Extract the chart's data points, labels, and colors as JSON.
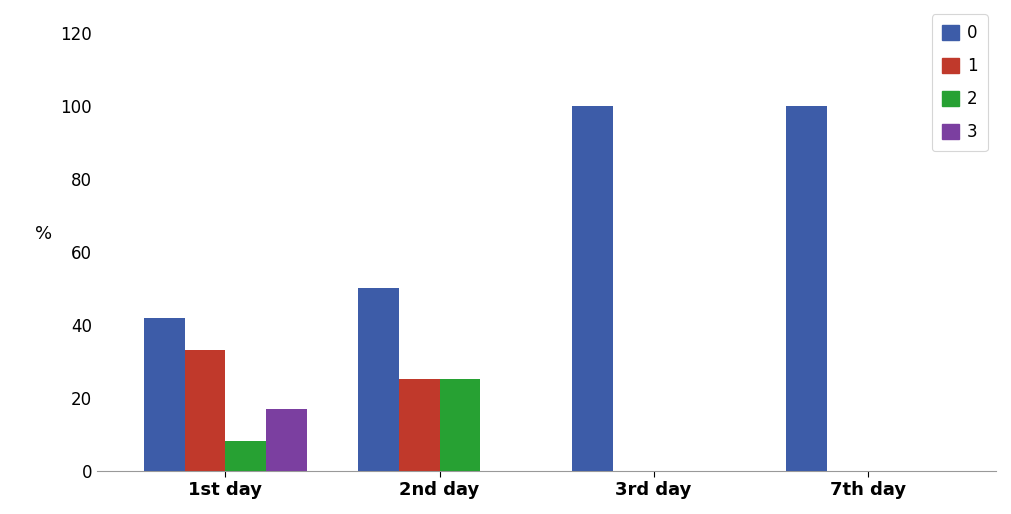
{
  "categories": [
    "1st day",
    "2nd day",
    "3rd day",
    "7th day"
  ],
  "series": {
    "0": [
      42,
      50,
      100,
      100
    ],
    "1": [
      33,
      25,
      0,
      0
    ],
    "2": [
      8,
      25,
      0,
      0
    ],
    "3": [
      17,
      0,
      0,
      0
    ]
  },
  "colors": {
    "0": "#3d5ca8",
    "1": "#c0392b",
    "2": "#27a133",
    "3": "#7b3fa0"
  },
  "legend_labels": [
    "0",
    "1",
    "2",
    "3"
  ],
  "ylabel": "%",
  "ylim": [
    0,
    125
  ],
  "yticks": [
    0,
    20,
    40,
    60,
    80,
    100,
    120
  ],
  "bar_width": 0.19,
  "background_color": "#ffffff",
  "title": "",
  "legend_fontsize": 12,
  "axis_fontsize": 13,
  "tick_fontsize": 12
}
